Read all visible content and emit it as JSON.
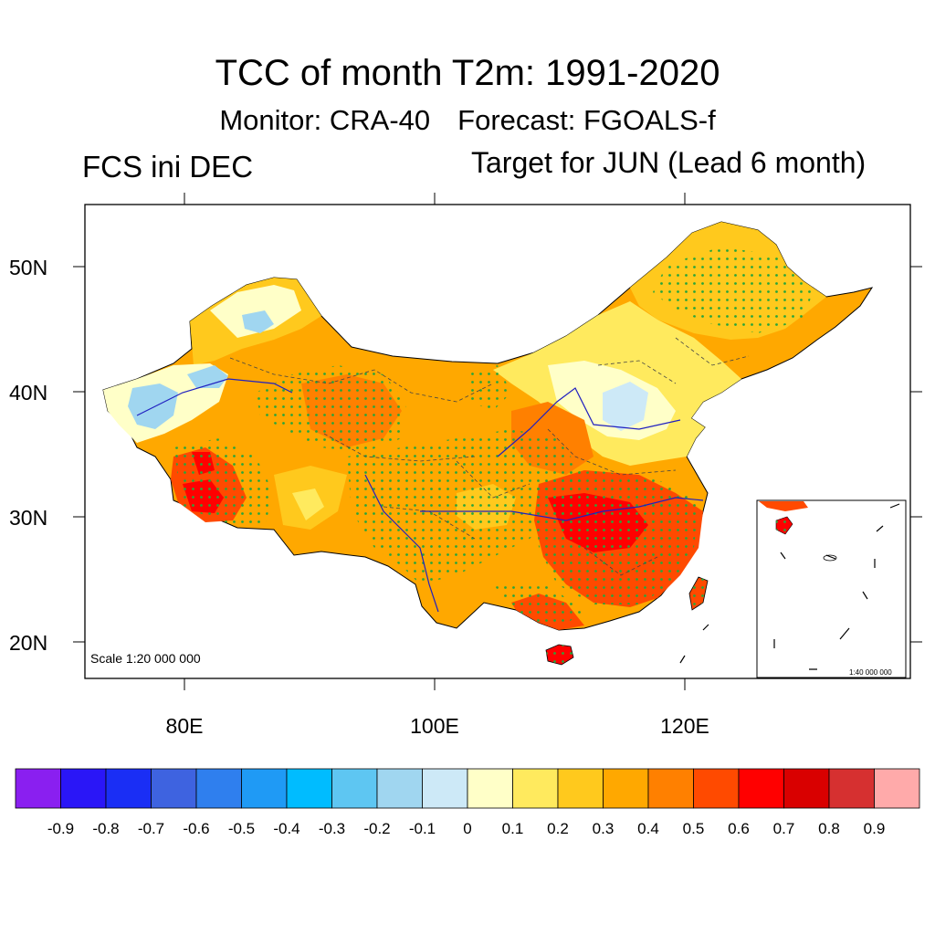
{
  "title": "TCC of month T2m: 1991-2020",
  "subtitle_monitor": "Monitor: CRA-40",
  "subtitle_forecast": "Forecast: FGOALS-f",
  "left_label": "FCS ini DEC",
  "right_label": "Target for JUN (Lead 6 month)",
  "main_scale": "Scale 1:20 000 000",
  "inset_scale": "1:40 000 000",
  "lat_labels": [
    "50N",
    "40N",
    "30N",
    "20N"
  ],
  "lon_labels": [
    "80E",
    "100E",
    "120E"
  ],
  "colorbar": {
    "colors": [
      "#8a1ff0",
      "#2a16f7",
      "#1a2ef5",
      "#3e63e0",
      "#2f7fee",
      "#1f9af5",
      "#00bcff",
      "#5ec6f2",
      "#a0d6f0",
      "#cde9f7",
      "#ffffc8",
      "#ffea5e",
      "#ffc91d",
      "#ffa800",
      "#ff8000",
      "#ff4a00",
      "#ff0000",
      "#d90000",
      "#d63030",
      "#ffaaaa"
    ],
    "labels": [
      "-0.9",
      "-0.8",
      "-0.7",
      "-0.6",
      "-0.5",
      "-0.4",
      "-0.3",
      "-0.2",
      "-0.1",
      "0",
      "0.1",
      "0.2",
      "0.3",
      "0.4",
      "0.5",
      "0.6",
      "0.7",
      "0.8",
      "0.9"
    ]
  }
}
